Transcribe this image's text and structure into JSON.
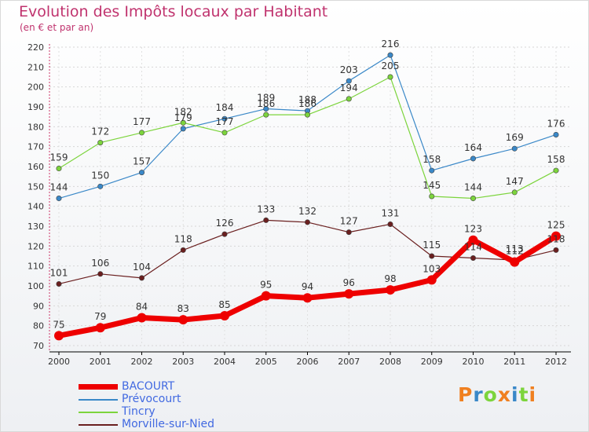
{
  "chart_data": {
    "type": "line",
    "title": "Evolution des Impôts locaux par Habitant",
    "subtitle": "(en € et par an)",
    "categories": [
      "2000",
      "2001",
      "2002",
      "2003",
      "2004",
      "2005",
      "2006",
      "2007",
      "2008",
      "2009",
      "2010",
      "2011",
      "2012"
    ],
    "ylim": [
      70,
      220
    ],
    "yticks": [
      70,
      80,
      90,
      100,
      110,
      120,
      130,
      140,
      150,
      160,
      170,
      180,
      190,
      200,
      210,
      220
    ],
    "series": [
      {
        "name": "BACOURT",
        "color": "#ee0000",
        "values": [
          75,
          79,
          84,
          83,
          85,
          95,
          94,
          96,
          98,
          103,
          123,
          112,
          125
        ]
      },
      {
        "name": "Prévocourt",
        "color": "#3a88c8",
        "values": [
          144,
          150,
          157,
          179,
          184,
          189,
          188,
          203,
          216,
          158,
          164,
          169,
          176
        ]
      },
      {
        "name": "Tincry",
        "color": "#7cd43c",
        "values": [
          159,
          172,
          177,
          182,
          177,
          186,
          186,
          194,
          205,
          145,
          144,
          147,
          158
        ]
      },
      {
        "name": "Morville-sur-Nied",
        "color": "#6a1f1f",
        "values": [
          101,
          106,
          104,
          118,
          126,
          133,
          132,
          127,
          131,
          115,
          114,
          113,
          118
        ]
      }
    ]
  },
  "brand": {
    "text": "Proxiti",
    "colors": [
      "#f08020",
      "#3a88c8",
      "#7cd43c",
      "#f08020",
      "#3a88c8",
      "#7cd43c",
      "#f08020"
    ]
  }
}
